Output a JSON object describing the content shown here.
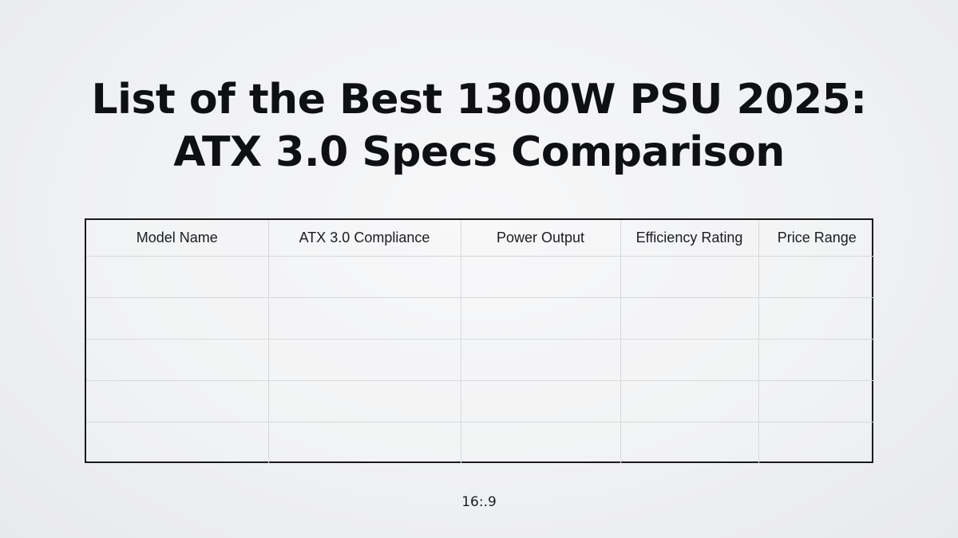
{
  "title": {
    "line1": "List of the Best 1300W PSU 2025:",
    "line2": "ATX 3.0 Specs Comparison"
  },
  "table": {
    "headers": [
      "Model Name",
      "ATX 3.0 Compliance",
      "Power Output",
      "Efficiency Rating",
      "Price Range"
    ],
    "rows": [
      [
        "",
        "",
        "",
        "",
        ""
      ],
      [
        "",
        "",
        "",
        "",
        ""
      ],
      [
        "",
        "",
        "",
        "",
        ""
      ],
      [
        "",
        "",
        "",
        "",
        ""
      ],
      [
        "",
        "",
        "",
        "",
        ""
      ]
    ]
  },
  "footer": {
    "ratio_label": "16:.9"
  },
  "colors": {
    "text": "#111216",
    "table_border": "#1a1a1e",
    "grid_line": "#d7d9de"
  }
}
